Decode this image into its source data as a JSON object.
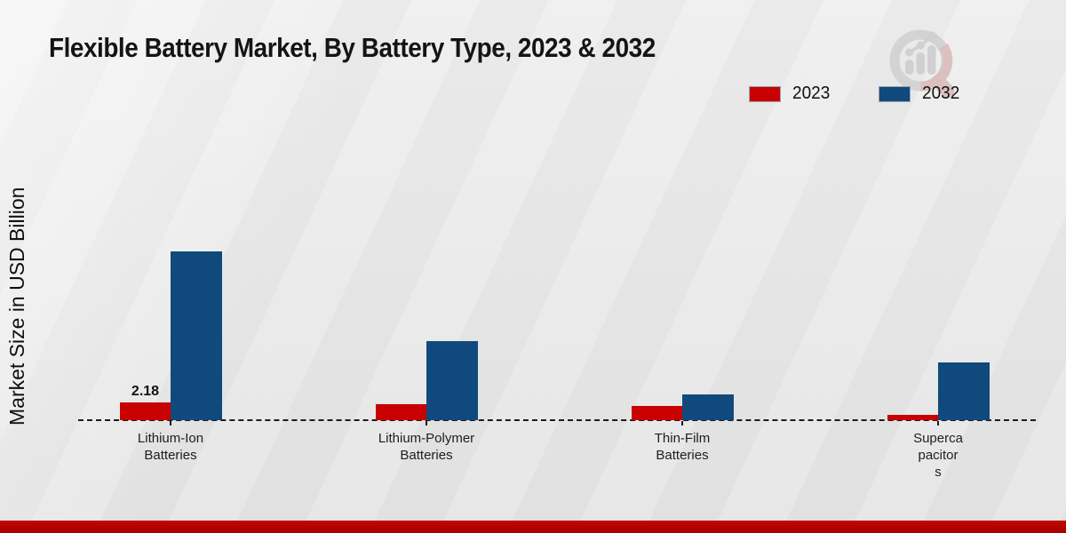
{
  "title": "Flexible Battery Market, By Battery Type, 2023 & 2032",
  "y_axis_label": "Market Size in USD Billion",
  "legend": [
    {
      "label": "2023",
      "color": "#c80100"
    },
    {
      "label": "2032",
      "color": "#104a7d"
    }
  ],
  "colors": {
    "background": "#e9e9e9",
    "footer_band": "#b00200",
    "axis": "#1c1c1c",
    "series_2023": "#c80100",
    "series_2032": "#104a7d",
    "watermark_gray": "#d2d2d2",
    "watermark_red_tint": "#dcbebe"
  },
  "chart_data": {
    "type": "bar",
    "title": "Flexible Battery Market, By Battery Type, 2023 & 2032",
    "xlabel": "",
    "ylabel": "Market Size in USD Billion",
    "categories": [
      "Lithium-Ion Batteries",
      "Lithium-Polymer Batteries",
      "Thin-Film Batteries",
      "Supercapacitors"
    ],
    "category_label_lines": [
      [
        "Lithium-Ion",
        "Batteries"
      ],
      [
        "Lithium-Polymer",
        "Batteries"
      ],
      [
        "Thin-Film",
        "Batteries"
      ],
      [
        "Superca",
        "pacitor",
        "s"
      ]
    ],
    "series": [
      {
        "name": "2023",
        "color": "#c80100",
        "values": [
          2.18,
          1.95,
          1.75,
          0.65
        ]
      },
      {
        "name": "2032",
        "color": "#104a7d",
        "values": [
          20.7,
          9.7,
          3.2,
          7.1
        ]
      }
    ],
    "annotations": [
      {
        "series": "2023",
        "category_index": 0,
        "text": "2.18"
      }
    ],
    "ylim": [
      0,
      21
    ],
    "grid": false,
    "legend_position": "top-right",
    "baseline_style": "dashed"
  }
}
